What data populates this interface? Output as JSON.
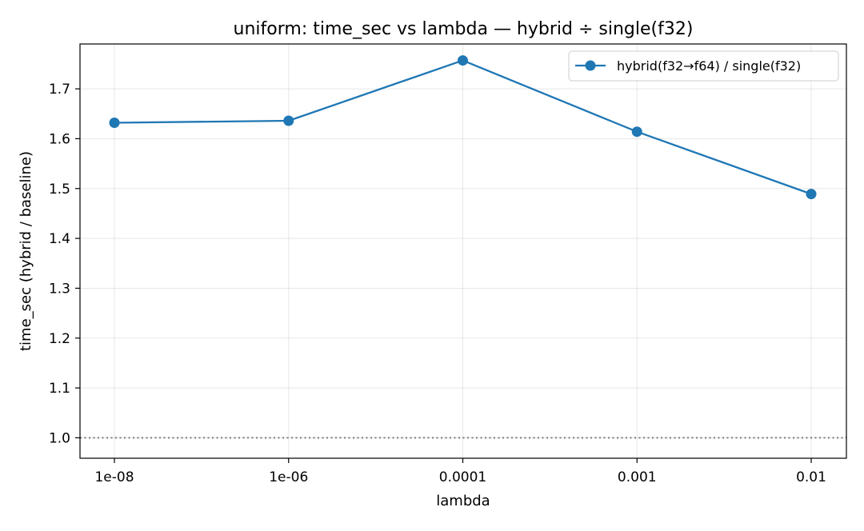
{
  "chart_data": {
    "type": "line",
    "title": "uniform: time_sec vs lambda — hybrid ÷ single(f32)",
    "xlabel": "lambda",
    "ylabel": "time_sec (hybrid / baseline)",
    "categories": [
      "1e-08",
      "1e-06",
      "0.0001",
      "0.001",
      "0.01"
    ],
    "series": [
      {
        "name": "hybrid(f32→f64) / single(f32)",
        "values": [
          1.632,
          1.636,
          1.757,
          1.614,
          1.489
        ],
        "color": "#1f77b4",
        "marker": "circle"
      }
    ],
    "yticks": [
      1.0,
      1.1,
      1.2,
      1.3,
      1.4,
      1.5,
      1.6,
      1.7
    ],
    "ytick_labels": [
      "1.0",
      "1.1",
      "1.2",
      "1.3",
      "1.4",
      "1.5",
      "1.6",
      "1.7"
    ],
    "ylim": [
      0.959,
      1.79
    ],
    "reference_line": {
      "y": 1.0,
      "style": "dotted",
      "color": "#808080"
    },
    "grid": true,
    "legend_position": "top-right"
  }
}
